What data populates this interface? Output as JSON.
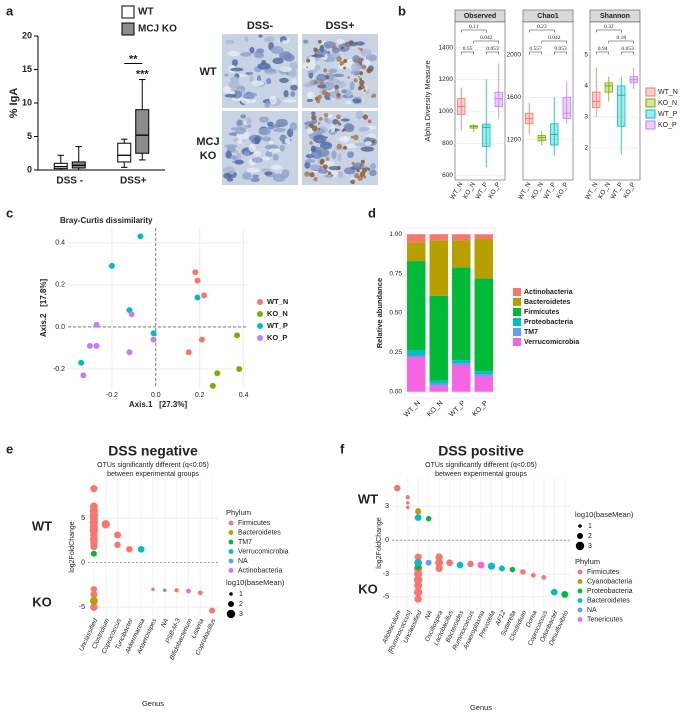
{
  "figure": {
    "panel_labels": [
      "a",
      "b",
      "c",
      "d",
      "e",
      "f"
    ],
    "micrographs": {
      "columns": [
        "DSS-",
        "DSS+"
      ],
      "rows": [
        [
          "WT"
        ],
        [
          "MCJ",
          "KO"
        ]
      ]
    }
  },
  "chart_data": [
    {
      "type": "box",
      "ylabel": "% IgA",
      "categories": [
        "DSS -",
        "DSS+"
      ],
      "ylim": [
        0,
        20
      ],
      "yticks": [
        0,
        5,
        10,
        15,
        20
      ],
      "series": [
        {
          "name": "WT",
          "color": "#ffffff",
          "min": [
            0,
            0.4
          ],
          "q1": [
            0.2,
            1.2
          ],
          "median": [
            0.5,
            2.2
          ],
          "q3": [
            1.0,
            4.0
          ],
          "max": [
            2.2,
            4.6
          ]
        },
        {
          "name": "MCJ KO",
          "color": "#8c8c8c",
          "min": [
            0,
            1.5
          ],
          "q1": [
            0.3,
            2.5
          ],
          "median": [
            0.7,
            5.2
          ],
          "q3": [
            1.2,
            9.0
          ],
          "max": [
            3.5,
            13.5
          ]
        }
      ],
      "annotations": [
        {
          "text": "**",
          "category": "DSS+",
          "series": [
            "WT",
            "MCJ KO"
          ]
        },
        {
          "text": "***",
          "category": "DSS+",
          "series": [
            "MCJ KO"
          ]
        }
      ]
    },
    {
      "type": "box_facets",
      "ylabel": "Alpha Diversity Measure",
      "categories": [
        "WT_N",
        "KO_N",
        "WT_P",
        "KO_P"
      ],
      "colors": [
        "#f8766d",
        "#7cae00",
        "#00bfc4",
        "#c77cff"
      ],
      "facets": [
        {
          "title": "Observed",
          "ylim": [
            570,
            1560
          ],
          "yticks": [
            600,
            800,
            1000,
            1200,
            1400
          ],
          "min": [
            880,
            870,
            650,
            950
          ],
          "q1": [
            980,
            895,
            780,
            1030
          ],
          "median": [
            1030,
            905,
            900,
            1080
          ],
          "q3": [
            1080,
            910,
            920,
            1120
          ],
          "max": [
            1150,
            920,
            1200,
            1300
          ],
          "comparisons": [
            {
              "groups": [
                "WT_N",
                "WT_P"
              ],
              "label": "0.11"
            },
            {
              "groups": [
                "KO_N",
                "KO_P"
              ],
              "label": "0.042"
            },
            {
              "groups": [
                "WT_N",
                "KO_N"
              ],
              "label": "0.55"
            },
            {
              "groups": [
                "WT_P",
                "KO_P"
              ],
              "label": "0.053"
            }
          ]
        },
        {
          "title": "Chao1",
          "ylim": [
            820,
            2310
          ],
          "yticks": [
            1200,
            1600,
            2000
          ],
          "min": [
            1250,
            1150,
            1050,
            1350
          ],
          "q1": [
            1350,
            1190,
            1150,
            1400
          ],
          "median": [
            1400,
            1220,
            1250,
            1450
          ],
          "q3": [
            1450,
            1240,
            1350,
            1600
          ],
          "max": [
            1550,
            1280,
            1600,
            1750
          ],
          "comparisons": [
            {
              "groups": [
                "WT_N",
                "WT_P"
              ],
              "label": "0.23"
            },
            {
              "groups": [
                "KO_N",
                "KO_P"
              ],
              "label": "0.042"
            },
            {
              "groups": [
                "WT_N",
                "KO_N"
              ],
              "label": "0.557"
            },
            {
              "groups": [
                "WT_P",
                "KO_P"
              ],
              "label": "0.053"
            }
          ]
        },
        {
          "title": "Shannon",
          "ylim": [
            0.97,
            6.06
          ],
          "yticks": [
            2,
            3,
            4,
            5
          ],
          "min": [
            3.0,
            3.5,
            1.8,
            3.9
          ],
          "q1": [
            3.3,
            3.8,
            2.7,
            4.1
          ],
          "median": [
            3.5,
            4.0,
            3.7,
            4.2
          ],
          "q3": [
            3.8,
            4.1,
            4.0,
            4.3
          ],
          "max": [
            4.6,
            4.3,
            4.3,
            4.6
          ],
          "comparisons": [
            {
              "groups": [
                "WT_N",
                "WT_P"
              ],
              "label": "0.32"
            },
            {
              "groups": [
                "KO_N",
                "KO_P"
              ],
              "label": "0.18"
            },
            {
              "groups": [
                "WT_N",
                "KO_N"
              ],
              "label": "0.94"
            },
            {
              "groups": [
                "WT_P",
                "KO_P"
              ],
              "label": "0.053"
            }
          ]
        }
      ]
    },
    {
      "type": "scatter",
      "title": "Bray-Curtis dissimilarity",
      "xlabel": "Axis.1   [27.3%]",
      "ylabel": "Axis.2   [17.8%]",
      "grid": true,
      "xlim": [
        -0.4,
        0.42
      ],
      "ylim": [
        -0.29,
        0.47
      ],
      "xticks": [
        -0.2,
        {
          "value": 0,
          "label": "0.0"
        },
        0.2,
        0.4
      ],
      "yticks": [
        -0.2,
        {
          "value": 0,
          "label": "0.0"
        },
        0.2,
        0.4
      ],
      "series": [
        {
          "name": "WT_N",
          "color": "#f8766d",
          "x": [
            0.18,
            0.19,
            0.22,
            0.15,
            0.21
          ],
          "values": [
            0.26,
            0.22,
            0.15,
            -0.12,
            -0.06
          ]
        },
        {
          "name": "KO_N",
          "color": "#7cae00",
          "x": [
            0.37,
            0.28,
            0.38,
            0.26
          ],
          "values": [
            -0.04,
            -0.22,
            -0.2,
            -0.28
          ]
        },
        {
          "name": "WT_P",
          "color": "#00bfc4",
          "x": [
            -0.07,
            -0.2,
            -0.12,
            0.19,
            -0.01,
            -0.34
          ],
          "values": [
            0.43,
            0.29,
            0.08,
            0.14,
            -0.03,
            -0.17
          ]
        },
        {
          "name": "KO_P",
          "color": "#c77cff",
          "x": [
            -0.27,
            -0.11,
            -0.3,
            -0.27,
            -0.33,
            -0.12,
            -0.01
          ],
          "values": [
            0.01,
            0.06,
            -0.09,
            -0.09,
            -0.23,
            -0.12,
            -0.06
          ]
        }
      ]
    },
    {
      "type": "stacked_bar",
      "ylabel": "Relative abundance",
      "categories": [
        "WT_N",
        "KO_N",
        "WT_P",
        "KO_P"
      ],
      "ylim": [
        -0.04,
        1.04
      ],
      "yticks": [
        {
          "value": 0,
          "label": "0.00"
        },
        0.25,
        {
          "value": 0.5,
          "label": "0.50"
        },
        0.75,
        {
          "value": 1,
          "label": "1.00"
        }
      ],
      "series": [
        {
          "name": "Actinobacteria",
          "color": "#f8766d",
          "values": [
            0.05,
            0.04,
            0.04,
            0.03
          ]
        },
        {
          "name": "Bacteroidetes",
          "color": "#b79f00",
          "values": [
            0.12,
            0.35,
            0.17,
            0.25
          ]
        },
        {
          "name": "Firmicutes",
          "color": "#00ba38",
          "values": [
            0.57,
            0.54,
            0.59,
            0.59
          ]
        },
        {
          "name": "Proteobacteria",
          "color": "#00bfc4",
          "values": [
            0.03,
            0.02,
            0.02,
            0.02
          ]
        },
        {
          "name": "TM7",
          "color": "#619cff",
          "values": [
            0.01,
            0.01,
            0.01,
            0.01
          ]
        },
        {
          "name": "Verrucomicrobia",
          "color": "#f564e3",
          "values": [
            0.22,
            0.04,
            0.17,
            0.1
          ]
        }
      ]
    },
    {
      "type": "bubble_strip",
      "title": "DSS negative",
      "subtitle": [
        "OTUs significantly different (q<0.05)",
        "between experimental groups"
      ],
      "xlabel": "Genus",
      "ylabel": "log2FoldChange",
      "group_labels": [
        "WT",
        "KO"
      ],
      "grid": true,
      "categories": [
        "Unclassified",
        "Clostridium",
        "Coprococcus",
        "Turicibacter",
        "Akkermansia",
        "Anaerostipes",
        "NA",
        "PSB-M-3",
        "Bifidobacterium",
        "Listeria",
        "Coprobacillus"
      ],
      "ylim": [
        -6,
        9.5
      ],
      "yticks": [
        -5,
        0,
        5
      ],
      "legend_title": "Phylum",
      "size_legend": {
        "title": "log10(baseMean)",
        "values": [
          1,
          2,
          3
        ]
      },
      "series": [
        {
          "name": "Firmicutes",
          "color": "#f8766d",
          "x": [
            "Unclassified",
            "Unclassified",
            "Unclassified",
            "Unclassified",
            "Unclassified",
            "Unclassified",
            "Unclassified",
            "Unclassified",
            "Unclassified",
            "Unclassified",
            "Unclassified",
            "Unclassified",
            "Unclassified",
            "Unclassified",
            "Unclassified",
            "Clostridium",
            "Coprococcus",
            "Coprococcus",
            "Turicibacter",
            "Anaerostipes",
            "PSB-M-3",
            "Listeria",
            "Coprobacillus"
          ],
          "values": [
            8.3,
            6.3,
            5.8,
            5.3,
            4.9,
            4.5,
            4.0,
            3.6,
            3.1,
            2.6,
            2.2,
            1.8,
            -3.0,
            -3.6,
            -5.0,
            4.3,
            3.1,
            2.0,
            1.5,
            -3.0,
            -3.1,
            -3.4,
            -5.4
          ],
          "sizes": [
            2.5,
            2.8,
            2.9,
            3,
            2.8,
            3,
            2.9,
            3,
            2.7,
            2.8,
            2.6,
            2.5,
            2.2,
            2.4,
            2.6,
            3,
            2.4,
            2.2,
            2.2,
            1,
            1.3,
            1.5,
            2
          ]
        },
        {
          "name": "Bacteroidetes",
          "color": "#b79f00",
          "x": [
            "Unclassified"
          ],
          "values": [
            -4.3
          ],
          "sizes": [
            2.8
          ]
        },
        {
          "name": "TM7",
          "color": "#00ba38",
          "x": [
            "Unclassified"
          ],
          "values": [
            1.0
          ],
          "sizes": [
            2
          ]
        },
        {
          "name": "Verrucomicrobia",
          "color": "#00bfc4",
          "x": [
            "Akkermansia"
          ],
          "values": [
            1.5
          ],
          "sizes": [
            2.3
          ]
        },
        {
          "name": "NA",
          "color": "#619cff",
          "x": [
            "NA"
          ],
          "values": [
            -3.1
          ],
          "sizes": [
            1
          ]
        },
        {
          "name": "Actinobacteria",
          "color": "#f564e3",
          "x": [
            "Bifidobacterium"
          ],
          "values": [
            -3.2
          ],
          "sizes": [
            1.5
          ]
        }
      ]
    },
    {
      "type": "bubble_strip",
      "title": "DSS positive",
      "subtitle": [
        "OTUs significantly different (q<0.05)",
        "between experimental groups"
      ],
      "xlabel": "Genus",
      "ylabel": "log2FoldChange",
      "group_labels": [
        "WT",
        "KO"
      ],
      "grid": true,
      "categories": [
        "Allobaculum",
        "[Ruminococcus]",
        "Unclassified",
        "NA",
        "Oscillospira",
        "Lactobacillus",
        "Bacteroides",
        "Ruminococcus",
        "Anaeroplasma",
        "Prevotella",
        "AF12",
        "Sutterella",
        "Clostridium",
        "Dorea",
        "Coprococcus",
        "Odoribacter",
        "Desulfovibrio"
      ],
      "ylim": [
        -6,
        5.5
      ],
      "yticks": [
        -5,
        -3,
        0,
        3
      ],
      "legend_title": "Phylum",
      "size_legend": {
        "title": "log10(baseMean)",
        "values": [
          1,
          2,
          3
        ]
      },
      "series": [
        {
          "name": "Firmicutes",
          "color": "#f8766d",
          "x": [
            "Allobaculum",
            "[Ruminococcus]",
            "[Ruminococcus]",
            "[Ruminococcus]",
            "Unclassified",
            "Unclassified",
            "Unclassified",
            "Unclassified",
            "Unclassified",
            "Unclassified",
            "Unclassified",
            "Unclassified",
            "Unclassified",
            "Oscillospira",
            "Oscillospira",
            "Oscillospira",
            "Lactobacillus",
            "Ruminococcus",
            "Clostridium",
            "Dorea",
            "Coprococcus"
          ],
          "values": [
            4.6,
            3.8,
            3.3,
            2.9,
            2.5,
            -1.5,
            -2.0,
            -2.5,
            -3.0,
            -3.5,
            -4.0,
            -4.6,
            -5.2,
            -1.5,
            -2.0,
            -2.5,
            -2.0,
            -2.1,
            -2.8,
            -3.1,
            -3.3
          ],
          "sizes": [
            2.2,
            1.2,
            1,
            1,
            2,
            2.5,
            2.8,
            3,
            2.9,
            3,
            2.8,
            3,
            2.6,
            2.6,
            2.8,
            2.5,
            2.3,
            2.2,
            1.8,
            1.5,
            1.5
          ]
        },
        {
          "name": "Cyanobacteria",
          "color": "#b79f00",
          "x": [
            "Unclassified"
          ],
          "values": [
            2.6
          ],
          "sizes": [
            1.8
          ]
        },
        {
          "name": "Proteobacteria",
          "color": "#00ba38",
          "x": [
            "Unclassified",
            "NA",
            "Sutterella",
            "Desulfovibrio"
          ],
          "values": [
            -2.4,
            1.9,
            -2.6,
            -4.8
          ],
          "sizes": [
            2,
            1.8,
            1.8,
            2.4
          ]
        },
        {
          "name": "Bacteroidetes",
          "color": "#00bfc4",
          "x": [
            "Unclassified",
            "Unclassified",
            "Bacteroides",
            "Prevotella",
            "AF12",
            "Odoribacter"
          ],
          "values": [
            2.0,
            -2.0,
            -2.2,
            -2.3,
            -2.5,
            -4.6
          ],
          "sizes": [
            2.3,
            2.5,
            2.3,
            2.5,
            2,
            2.3
          ]
        },
        {
          "name": "NA",
          "color": "#619cff",
          "x": [
            "NA"
          ],
          "values": [
            -2.0
          ],
          "sizes": [
            2
          ]
        },
        {
          "name": "Tenericutes",
          "color": "#f564e3",
          "x": [
            "Anaeroplasma"
          ],
          "values": [
            -2.2
          ],
          "sizes": [
            2.4
          ]
        }
      ]
    }
  ]
}
